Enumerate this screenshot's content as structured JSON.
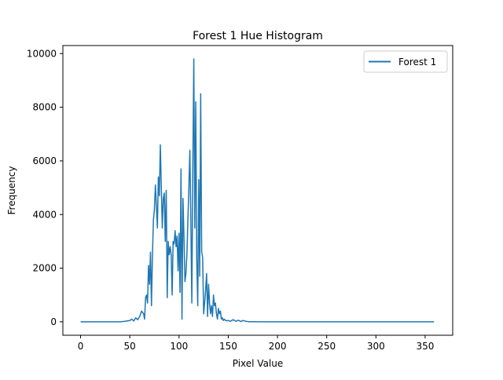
{
  "chart_data": {
    "type": "line",
    "title": "Forest 1 Hue Histogram",
    "xlabel": "Pixel Value",
    "ylabel": "Frequency",
    "xlim": [
      -18,
      378
    ],
    "ylim": [
      -500,
      10300
    ],
    "xticks": [
      0,
      50,
      100,
      150,
      200,
      250,
      300,
      350
    ],
    "yticks": [
      0,
      2000,
      4000,
      6000,
      8000,
      10000
    ],
    "grid": false,
    "legend_position": "top-right",
    "line_color": "#1f77b4",
    "series": [
      {
        "name": "Forest 1",
        "x": [
          0,
          10,
          20,
          30,
          40,
          45,
          50,
          52,
          54,
          56,
          58,
          60,
          62,
          64,
          65,
          66,
          67,
          68,
          69,
          70,
          71,
          72,
          73,
          74,
          75,
          76,
          77,
          78,
          79,
          80,
          81,
          82,
          83,
          84,
          85,
          86,
          87,
          88,
          89,
          90,
          91,
          92,
          93,
          94,
          95,
          96,
          97,
          98,
          99,
          100,
          101,
          102,
          103,
          104,
          105,
          106,
          107,
          108,
          109,
          110,
          111,
          112,
          113,
          114,
          115,
          116,
          117,
          118,
          119,
          120,
          121,
          122,
          123,
          124,
          125,
          126,
          127,
          128,
          129,
          130,
          131,
          132,
          133,
          134,
          135,
          136,
          137,
          138,
          139,
          140,
          141,
          142,
          143,
          144,
          145,
          146,
          147,
          148,
          150,
          152,
          155,
          158,
          160,
          163,
          165,
          168,
          170,
          172,
          175,
          180,
          190,
          200,
          250,
          300,
          359
        ],
        "y": [
          0,
          0,
          0,
          0,
          0,
          20,
          50,
          100,
          30,
          150,
          80,
          200,
          400,
          300,
          100,
          900,
          1000,
          700,
          2100,
          1400,
          2600,
          600,
          2500,
          3800,
          4200,
          5100,
          4300,
          3500,
          5400,
          4700,
          6600,
          5000,
          3500,
          4600,
          4800,
          3000,
          4900,
          900,
          3000,
          2500,
          2800,
          2500,
          1000,
          3000,
          2900,
          3400,
          2800,
          3200,
          1900,
          3300,
          1100,
          5700,
          100,
          4600,
          3200,
          1500,
          1800,
          2500,
          3800,
          5000,
          6400,
          3800,
          700,
          5700,
          9800,
          3500,
          8200,
          2300,
          600,
          5300,
          1700,
          8500,
          2600,
          2400,
          300,
          700,
          1200,
          1800,
          200,
          1400,
          700,
          300,
          600,
          200,
          1000,
          600,
          700,
          300,
          100,
          500,
          300,
          400,
          100,
          150,
          50,
          100,
          60,
          40,
          50,
          20,
          80,
          20,
          60,
          10,
          50,
          20,
          10,
          5,
          5,
          2,
          1,
          0,
          0,
          0,
          0
        ]
      }
    ]
  }
}
